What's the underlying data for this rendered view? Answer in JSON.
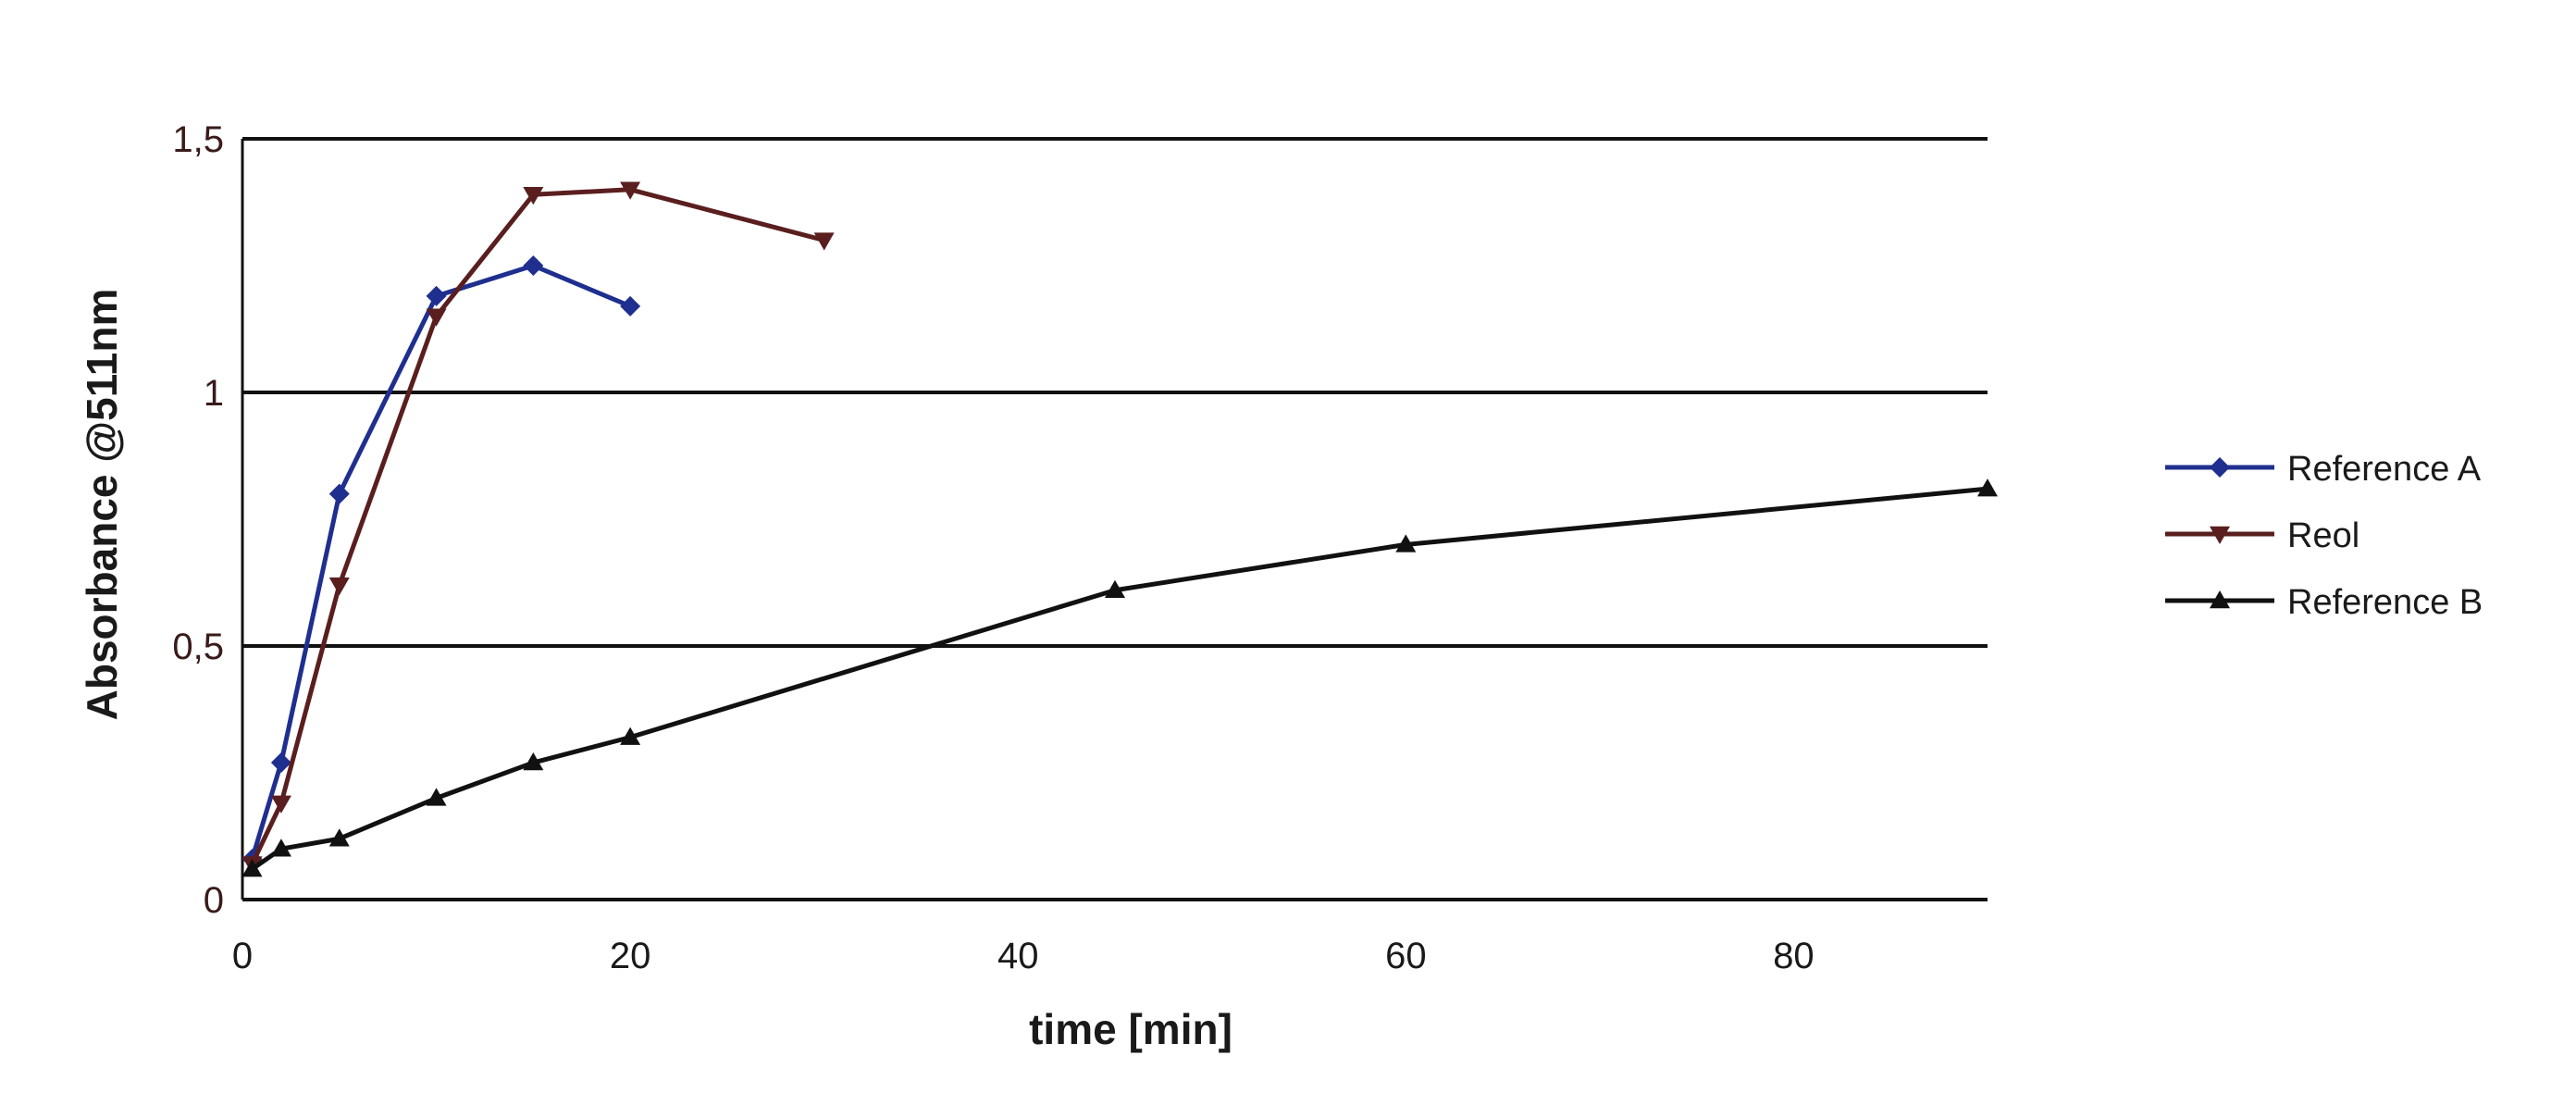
{
  "chart_data": {
    "type": "line",
    "title": "",
    "xlabel": "time [min]",
    "ylabel": "Absorbance @511nm",
    "xlim": [
      0,
      90
    ],
    "ylim": [
      0,
      1.5
    ],
    "x_ticks": [
      0,
      20,
      40,
      60,
      80
    ],
    "x_tick_labels": [
      "0",
      "20",
      "40",
      "60",
      "80"
    ],
    "y_ticks": [
      0,
      0.5,
      1,
      1.5
    ],
    "y_tick_labels": [
      "0",
      "0,5",
      "1",
      "1,5"
    ],
    "grid": "horizontal",
    "legend_position": "right",
    "series": [
      {
        "name": "Reference A",
        "color": "#1f2f8f",
        "marker": "diamond",
        "x": [
          0.5,
          2,
          5,
          10,
          15,
          20
        ],
        "y": [
          0.08,
          0.27,
          0.8,
          1.19,
          1.25,
          1.17
        ]
      },
      {
        "name": "Reol",
        "color": "#5a1e1e",
        "marker": "triangle-down",
        "x": [
          0.5,
          2,
          5,
          10,
          15,
          20,
          30
        ],
        "y": [
          0.07,
          0.19,
          0.62,
          1.15,
          1.39,
          1.4,
          1.3
        ]
      },
      {
        "name": "Reference B",
        "color": "#111111",
        "marker": "triangle-up",
        "x": [
          0.5,
          2,
          5,
          10,
          15,
          20,
          45,
          60,
          90
        ],
        "y": [
          0.06,
          0.1,
          0.12,
          0.2,
          0.27,
          0.32,
          0.61,
          0.7,
          0.81
        ]
      }
    ]
  }
}
